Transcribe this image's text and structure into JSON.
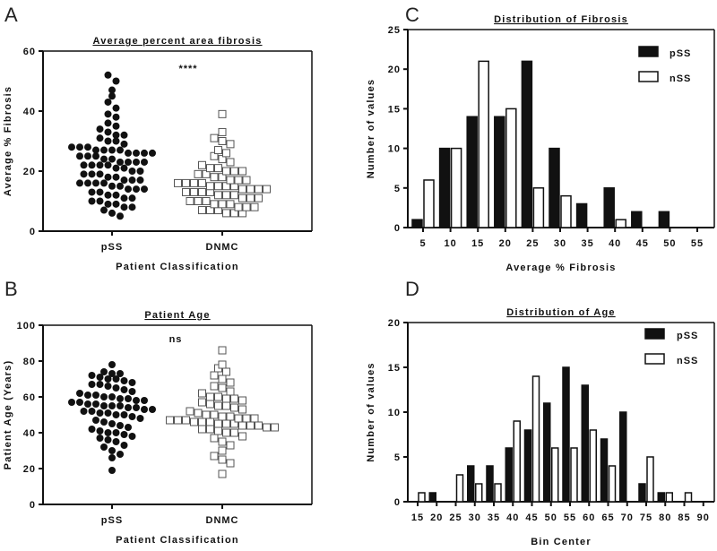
{
  "chart_data": [
    {
      "panel": "A",
      "type": "scatter",
      "title": "Average percent area fibrosis",
      "xlabel": "Patient Classification",
      "ylabel": "Average % Fibrosis",
      "ylim": [
        0,
        60
      ],
      "yticks": [
        "0",
        "20",
        "40",
        "60"
      ],
      "categories": [
        "pSS",
        "DNMC"
      ],
      "annotation": "****",
      "series": [
        {
          "name": "pSS",
          "marker": "filled-circle",
          "values": [
            52,
            50,
            47,
            45,
            43,
            41,
            39,
            38,
            36,
            35,
            34,
            33,
            32,
            32,
            31,
            30,
            30,
            29,
            28,
            28,
            28,
            27,
            27,
            27,
            27,
            26,
            26,
            26,
            26,
            25,
            25,
            25,
            24,
            24,
            23,
            23,
            23,
            23,
            22,
            22,
            22,
            22,
            21,
            21,
            20,
            20,
            19,
            19,
            19,
            18,
            18,
            17,
            17,
            17,
            16,
            16,
            16,
            16,
            15,
            15,
            14,
            14,
            14,
            13,
            13,
            12,
            12,
            11,
            11,
            10,
            10,
            9,
            9,
            8,
            8,
            7,
            6,
            5
          ]
        },
        {
          "name": "DNMC",
          "marker": "open-square",
          "values": [
            39,
            33,
            31,
            30,
            29,
            27,
            26,
            25,
            24,
            23,
            22,
            21,
            21,
            20,
            20,
            20,
            19,
            19,
            18,
            18,
            17,
            17,
            17,
            16,
            16,
            16,
            16,
            15,
            15,
            15,
            15,
            14,
            14,
            14,
            14,
            13,
            13,
            13,
            13,
            12,
            12,
            12,
            11,
            11,
            11,
            10,
            10,
            10,
            9,
            9,
            9,
            8,
            8,
            8,
            7,
            7,
            7,
            6,
            6,
            6
          ]
        }
      ]
    },
    {
      "panel": "B",
      "type": "scatter",
      "title": "Patient Age",
      "xlabel": "Patient Classification",
      "ylabel": "Patient Age (Years)",
      "ylim": [
        0,
        100
      ],
      "yticks": [
        "0",
        "20",
        "40",
        "60",
        "80",
        "100"
      ],
      "categories": [
        "pSS",
        "DNMC"
      ],
      "annotation": "ns",
      "series": [
        {
          "name": "pSS",
          "marker": "filled-circle",
          "values": [
            78,
            74,
            73,
            73,
            72,
            71,
            70,
            70,
            69,
            68,
            67,
            67,
            66,
            65,
            64,
            63,
            62,
            61,
            61,
            60,
            60,
            59,
            59,
            58,
            58,
            57,
            57,
            56,
            56,
            55,
            55,
            55,
            54,
            54,
            53,
            53,
            52,
            52,
            51,
            51,
            50,
            50,
            49,
            48,
            47,
            46,
            45,
            44,
            43,
            42,
            41,
            40,
            40,
            39,
            38,
            37,
            36,
            35,
            33,
            32,
            30,
            28,
            26,
            19
          ]
        },
        {
          "name": "DNMC",
          "marker": "open-square",
          "values": [
            86,
            78,
            76,
            74,
            72,
            70,
            68,
            66,
            65,
            63,
            62,
            60,
            60,
            59,
            59,
            58,
            57,
            56,
            55,
            55,
            54,
            53,
            52,
            51,
            50,
            50,
            49,
            49,
            48,
            48,
            48,
            47,
            47,
            47,
            46,
            46,
            46,
            45,
            45,
            45,
            44,
            44,
            44,
            43,
            43,
            42,
            42,
            41,
            40,
            40,
            38,
            37,
            35,
            33,
            30,
            27,
            25,
            23,
            17
          ]
        }
      ]
    },
    {
      "panel": "C",
      "type": "bar",
      "title": "Distribution of Fibrosis",
      "xlabel": "Average % Fibrosis",
      "ylabel": "Number of values",
      "ylim": [
        0,
        25
      ],
      "yticks": [
        "0",
        "5",
        "10",
        "15",
        "20",
        "25"
      ],
      "categories": [
        "5",
        "10",
        "15",
        "20",
        "25",
        "30",
        "35",
        "40",
        "45",
        "50",
        "55"
      ],
      "legend": "top-right",
      "series": [
        {
          "name": "pSS",
          "values": [
            1,
            10,
            14,
            14,
            21,
            10,
            3,
            5,
            2,
            2,
            0
          ]
        },
        {
          "name": "nSS",
          "values": [
            6,
            10,
            21,
            15,
            5,
            4,
            0,
            1,
            0,
            0,
            0
          ]
        }
      ]
    },
    {
      "panel": "D",
      "type": "bar",
      "title": "Distribution of Age",
      "xlabel": "Bin Center",
      "ylabel": "Number of values",
      "ylim": [
        0,
        20
      ],
      "yticks": [
        "0",
        "5",
        "10",
        "15",
        "20"
      ],
      "categories": [
        "15",
        "20",
        "25",
        "30",
        "35",
        "40",
        "45",
        "50",
        "55",
        "60",
        "65",
        "70",
        "75",
        "80",
        "85",
        "90"
      ],
      "legend": "top-right",
      "series": [
        {
          "name": "pSS",
          "values": [
            0,
            1,
            0,
            4,
            4,
            6,
            8,
            11,
            15,
            13,
            7,
            10,
            2,
            1,
            0,
            0
          ]
        },
        {
          "name": "nSS",
          "values": [
            1,
            0,
            3,
            2,
            2,
            9,
            14,
            6,
            6,
            8,
            4,
            0,
            5,
            1,
            1,
            0
          ]
        }
      ]
    }
  ]
}
